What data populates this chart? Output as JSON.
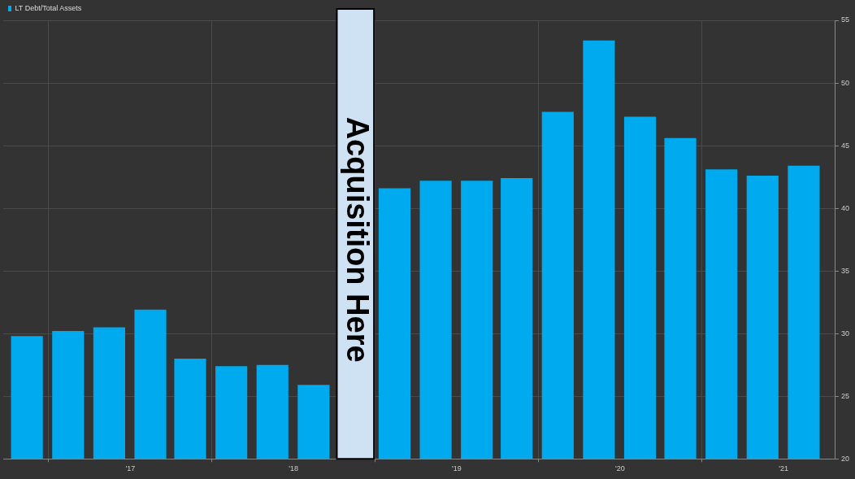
{
  "chart_data": {
    "type": "bar",
    "x": [
      "2016-05-15",
      "2016-08-15",
      "2016-11-15",
      "2017-02-15",
      "2017-05-15",
      "2017-08-15",
      "2017-11-15",
      "2018-02-15",
      "2018-08-15",
      "2018-11-15",
      "2019-02-15",
      "2019-05-15",
      "2019-08-15",
      "2019-11-15",
      "2020-02-15",
      "2020-05-15",
      "2020-08-15",
      "2020-11-15",
      "2021-02-15"
    ],
    "series": [
      {
        "name": "LT Debt/Total Assets",
        "color": "#00aaee",
        "values": [
          29.8,
          30.2,
          30.5,
          31.9,
          28.0,
          27.4,
          27.5,
          25.9,
          41.6,
          42.2,
          42.2,
          42.4,
          47.7,
          53.4,
          47.3,
          45.6,
          43.1,
          42.6,
          43.4
        ]
      }
    ],
    "xlim": [
      "2016-03-23",
      "2021-04-27"
    ],
    "xticks": [
      {
        "value": "2017-01-01",
        "label": "'17"
      },
      {
        "value": "2018-01-01",
        "label": "'18"
      },
      {
        "value": "2019-01-01",
        "label": "'19"
      },
      {
        "value": "2020-01-01",
        "label": "'20"
      },
      {
        "value": "2021-01-01",
        "label": "'21"
      }
    ],
    "ylim": [
      20,
      55
    ],
    "yticks": [
      20,
      25,
      30,
      35,
      40,
      45,
      50,
      55
    ],
    "bands": [
      {
        "axis": "x",
        "from": "2018-04-08",
        "to": "2018-06-30",
        "label": "Acquisition Here",
        "color": "#cfe2f3"
      }
    ],
    "grid": true,
    "legend": "top left"
  }
}
